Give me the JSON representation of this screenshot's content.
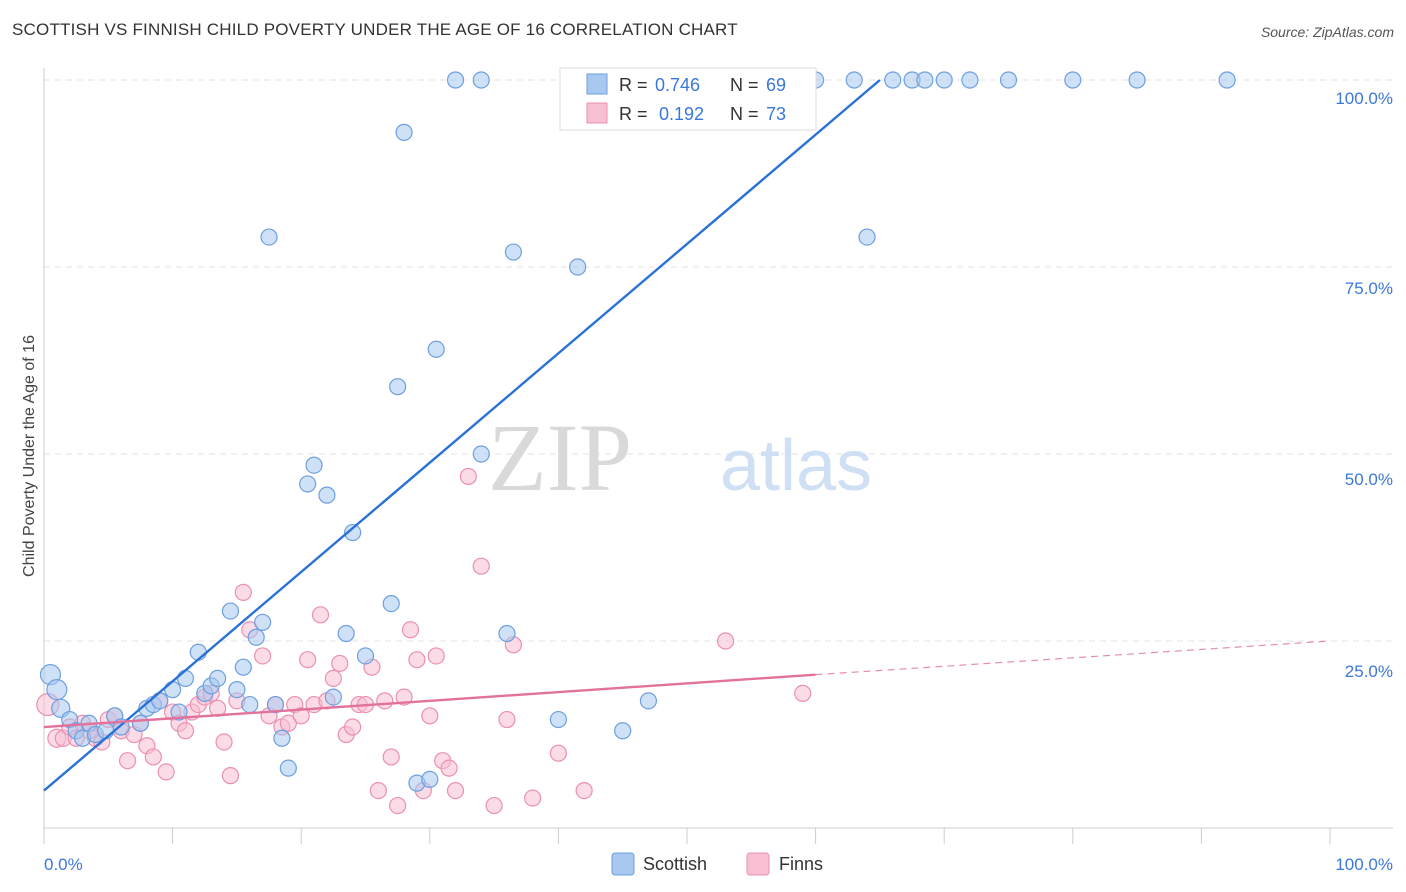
{
  "title": "SCOTTISH VS FINNISH CHILD POVERTY UNDER THE AGE OF 16 CORRELATION CHART",
  "source": "Source: ZipAtlas.com",
  "watermark": {
    "zip": "ZIP",
    "atlas": "atlas"
  },
  "colors": {
    "scottish_fill": "#a8c8ef",
    "scottish_stroke": "#6d9fe0",
    "scottish_line": "#2b72d6",
    "finns_fill": "#f7bfd1",
    "finns_stroke": "#ec8fb0",
    "finns_line": "#e2719b",
    "value_text": "#3b78d8",
    "grid": "#e3e3e3"
  },
  "legend_stats": {
    "scottish": {
      "r_label": "R =",
      "r_value": "0.746",
      "n_label": "N =",
      "n_value": "69"
    },
    "finns": {
      "r_label": "R =",
      "r_value": "0.192",
      "n_label": "N =",
      "n_value": "73"
    }
  },
  "chart_data": {
    "type": "scatter",
    "title": "SCOTTISH VS FINNISH CHILD POVERTY UNDER THE AGE OF 16 CORRELATION CHART",
    "xlabel": "",
    "ylabel": "Child Poverty Under the Age of 16",
    "xlim": [
      0,
      100
    ],
    "ylim": [
      0,
      100
    ],
    "x_tick_labels": [
      "0.0%",
      "100.0%"
    ],
    "y_tick_labels": [
      "25.0%",
      "50.0%",
      "75.0%",
      "100.0%"
    ],
    "y_ticks": [
      25,
      50,
      75,
      100
    ],
    "grid": true,
    "legend_position": "bottom",
    "series": [
      {
        "name": "Scottish",
        "r": 0.746,
        "n": 69,
        "trend": {
          "x": [
            0,
            65
          ],
          "y": [
            5,
            100
          ]
        },
        "points": [
          [
            0.5,
            20.5,
            10
          ],
          [
            1,
            18.5,
            10
          ],
          [
            1.3,
            16,
            9
          ],
          [
            2,
            14.5,
            8
          ],
          [
            2.5,
            13,
            8
          ],
          [
            3,
            12,
            8
          ],
          [
            3.5,
            14,
            8
          ],
          [
            4,
            12.5,
            8
          ],
          [
            4.8,
            13,
            8
          ],
          [
            5.5,
            15,
            8
          ],
          [
            6,
            13.5,
            8
          ],
          [
            7.5,
            14,
            8
          ],
          [
            8,
            16,
            8
          ],
          [
            8.5,
            16.5,
            8
          ],
          [
            9,
            17,
            8
          ],
          [
            10,
            18.5,
            8
          ],
          [
            10.5,
            15.5,
            8
          ],
          [
            11,
            20,
            8
          ],
          [
            12,
            23.5,
            8
          ],
          [
            12.5,
            18,
            8
          ],
          [
            13,
            19,
            8
          ],
          [
            13.5,
            20,
            8
          ],
          [
            14.5,
            29,
            8
          ],
          [
            15,
            18.5,
            8
          ],
          [
            15.5,
            21.5,
            8
          ],
          [
            16,
            16.5,
            8
          ],
          [
            16.5,
            25.5,
            8
          ],
          [
            17,
            27.5,
            8
          ],
          [
            17.5,
            79,
            8
          ],
          [
            18,
            16.5,
            8
          ],
          [
            18.5,
            12,
            8
          ],
          [
            19,
            8,
            8
          ],
          [
            20.5,
            46,
            8
          ],
          [
            21,
            48.5,
            8
          ],
          [
            22,
            44.5,
            8
          ],
          [
            22.5,
            17.5,
            8
          ],
          [
            23.5,
            26,
            8
          ],
          [
            24,
            39.5,
            8
          ],
          [
            25,
            23,
            8
          ],
          [
            27,
            30,
            8
          ],
          [
            27.5,
            59,
            8
          ],
          [
            28,
            93,
            8
          ],
          [
            29,
            6,
            8
          ],
          [
            30,
            6.5,
            8
          ],
          [
            30.5,
            64,
            8
          ],
          [
            32,
            100,
            8
          ],
          [
            34,
            100,
            8
          ],
          [
            34,
            50,
            8
          ],
          [
            36,
            26,
            8
          ],
          [
            36.5,
            77,
            8
          ],
          [
            40,
            14.5,
            8
          ],
          [
            41.5,
            75,
            8
          ],
          [
            45,
            13,
            8
          ],
          [
            47,
            17,
            8
          ],
          [
            49,
            100,
            8
          ],
          [
            52,
            100,
            8
          ],
          [
            55,
            100,
            8
          ],
          [
            60,
            100,
            8
          ],
          [
            63,
            100,
            8
          ],
          [
            64,
            79,
            8
          ],
          [
            66,
            100,
            8
          ],
          [
            67.5,
            100,
            8
          ],
          [
            68.5,
            100,
            8
          ],
          [
            70,
            100,
            8
          ],
          [
            72,
            100,
            8
          ],
          [
            75,
            100,
            8
          ],
          [
            80,
            100,
            8
          ],
          [
            85,
            100,
            8
          ],
          [
            92,
            100,
            8
          ]
        ]
      },
      {
        "name": "Finns",
        "r": 0.192,
        "n": 73,
        "trend": {
          "x": [
            0,
            60
          ],
          "y": [
            13.5,
            20.5
          ],
          "dashed_to": [
            100,
            25
          ]
        },
        "points": [
          [
            0.3,
            16.5,
            11
          ],
          [
            1,
            12,
            9
          ],
          [
            1.5,
            12,
            8
          ],
          [
            2,
            13.5,
            8
          ],
          [
            2.5,
            12,
            8
          ],
          [
            3,
            14,
            8
          ],
          [
            3.5,
            13,
            8
          ],
          [
            4,
            12,
            8
          ],
          [
            4.5,
            11.5,
            8
          ],
          [
            5,
            14.5,
            8
          ],
          [
            5.5,
            15,
            8
          ],
          [
            6,
            13,
            8
          ],
          [
            6.5,
            9,
            8
          ],
          [
            7,
            12.5,
            8
          ],
          [
            7.5,
            14,
            8
          ],
          [
            8,
            11,
            8
          ],
          [
            8.5,
            9.5,
            8
          ],
          [
            9,
            17,
            8
          ],
          [
            9.5,
            7.5,
            8
          ],
          [
            10,
            15.5,
            8
          ],
          [
            10.5,
            14,
            8
          ],
          [
            11,
            13,
            8
          ],
          [
            11.5,
            15.5,
            8
          ],
          [
            12,
            16.5,
            8
          ],
          [
            12.5,
            17.5,
            8
          ],
          [
            13,
            18,
            8
          ],
          [
            13.5,
            16,
            8
          ],
          [
            14,
            11.5,
            8
          ],
          [
            14.5,
            7,
            8
          ],
          [
            15,
            17,
            8
          ],
          [
            15.5,
            31.5,
            8
          ],
          [
            16,
            26.5,
            8
          ],
          [
            17,
            23,
            8
          ],
          [
            17.5,
            15,
            8
          ],
          [
            18,
            16.5,
            8
          ],
          [
            18.5,
            13.5,
            8
          ],
          [
            19,
            14,
            8
          ],
          [
            19.5,
            16.5,
            8
          ],
          [
            20,
            15,
            8
          ],
          [
            20.5,
            22.5,
            8
          ],
          [
            21,
            16.5,
            8
          ],
          [
            21.5,
            28.5,
            8
          ],
          [
            22,
            17,
            8
          ],
          [
            22.5,
            20,
            8
          ],
          [
            23,
            22,
            8
          ],
          [
            23.5,
            12.5,
            8
          ],
          [
            24,
            13.5,
            8
          ],
          [
            24.5,
            16.5,
            8
          ],
          [
            25,
            16.5,
            8
          ],
          [
            25.5,
            21.5,
            8
          ],
          [
            26,
            5,
            8
          ],
          [
            26.5,
            17,
            8
          ],
          [
            27,
            9.5,
            8
          ],
          [
            27.5,
            3,
            8
          ],
          [
            28,
            17.5,
            8
          ],
          [
            28.5,
            26.5,
            8
          ],
          [
            29,
            22.5,
            8
          ],
          [
            29.5,
            5,
            8
          ],
          [
            30,
            15,
            8
          ],
          [
            30.5,
            23,
            8
          ],
          [
            31,
            9,
            8
          ],
          [
            31.5,
            8,
            8
          ],
          [
            32,
            5,
            8
          ],
          [
            33,
            47,
            8
          ],
          [
            34,
            35,
            8
          ],
          [
            35,
            3,
            8
          ],
          [
            36,
            14.5,
            8
          ],
          [
            36.5,
            24.5,
            8
          ],
          [
            38,
            4,
            8
          ],
          [
            40,
            10,
            8
          ],
          [
            42,
            5,
            8
          ],
          [
            53,
            25,
            8
          ],
          [
            59,
            18,
            8
          ]
        ]
      }
    ]
  },
  "legend_bottom": [
    {
      "label": "Scottish"
    },
    {
      "label": "Finns"
    }
  ]
}
